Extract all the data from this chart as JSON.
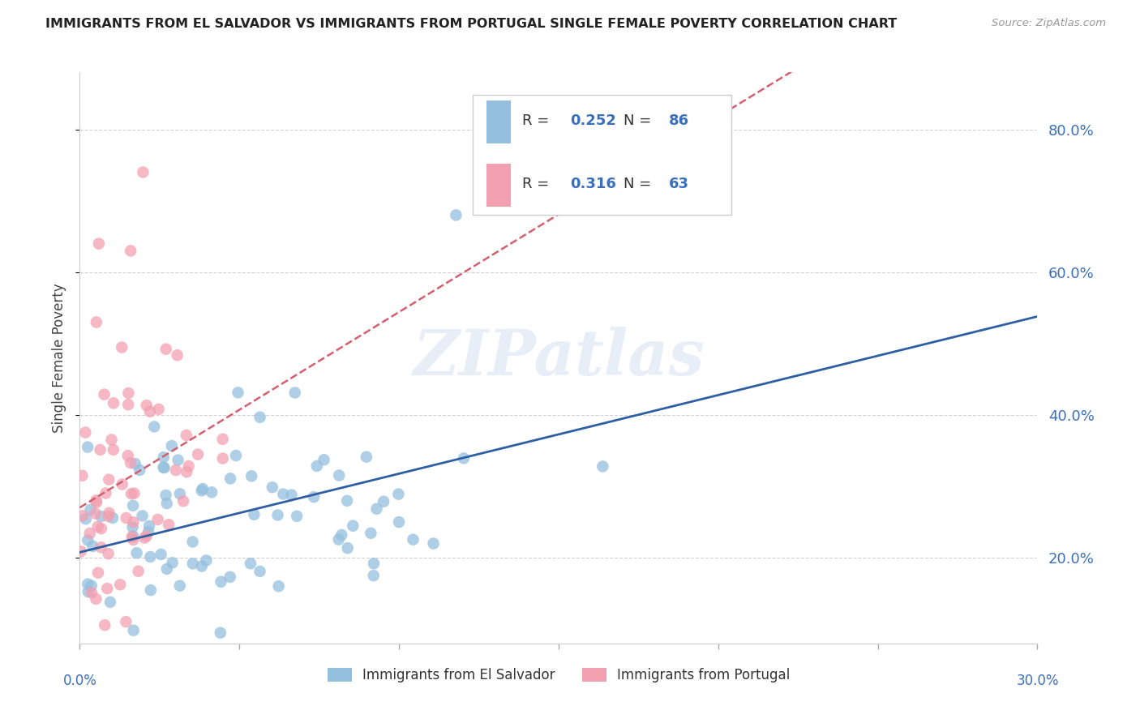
{
  "title": "IMMIGRANTS FROM EL SALVADOR VS IMMIGRANTS FROM PORTUGAL SINGLE FEMALE POVERTY CORRELATION CHART",
  "source": "Source: ZipAtlas.com",
  "ylabel": "Single Female Poverty",
  "xlim": [
    0.0,
    0.3
  ],
  "ylim": [
    0.08,
    0.88
  ],
  "yticks": [
    0.2,
    0.4,
    0.6,
    0.8
  ],
  "series1_name": "Immigrants from El Salvador",
  "series2_name": "Immigrants from Portugal",
  "series1_color": "#94bfde",
  "series2_color": "#f2a0b0",
  "series1_r": 0.252,
  "series1_n": 86,
  "series2_r": 0.316,
  "series2_n": 63,
  "series1_line_color": "#2e5fa3",
  "series2_line_color": "#d45f70",
  "background_color": "#ffffff",
  "grid_color": "#cccccc",
  "title_color": "#222222",
  "right_tick_color": "#3a6fbc",
  "bottom_tick_color": "#3a6fbc"
}
